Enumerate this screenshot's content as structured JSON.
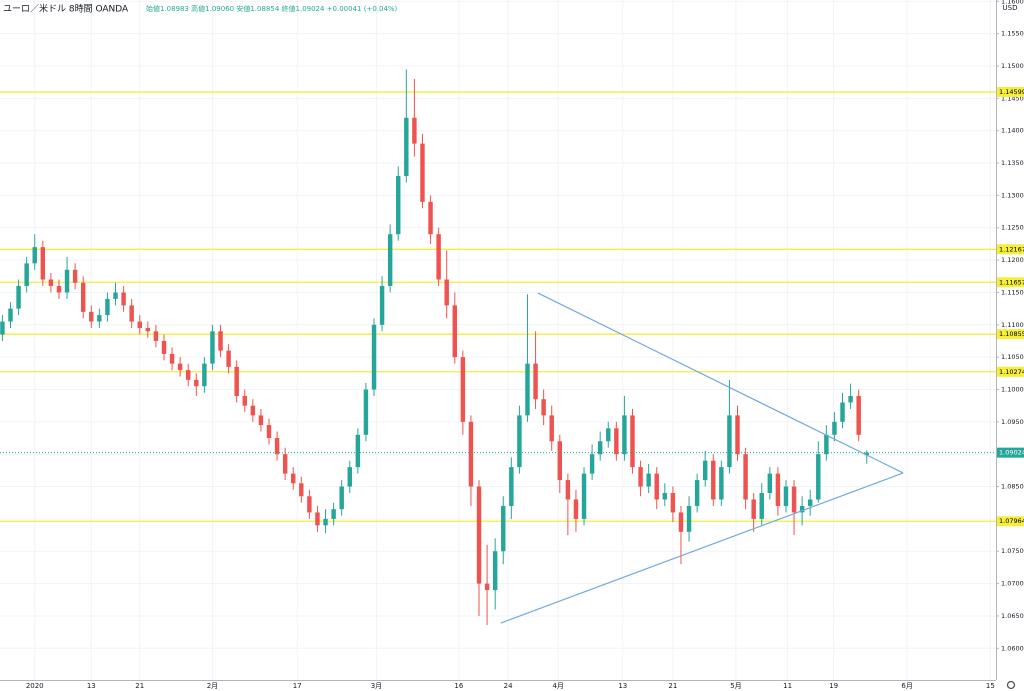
{
  "chart_data": {
    "type": "candlestick",
    "header": {
      "symbol": "ユーロ／米ドル  8時間  OANDA",
      "ohlc_legend": "始値1.08983 高値1.09060 安値1.08854 終値1.09024 +0.00041 (+0.04%)"
    },
    "currency": "USD",
    "up_color": "#26a69a",
    "down_color": "#ef5350",
    "grid": true,
    "xlim": [
      -4.3,
      119
    ],
    "ylim": [
      1.0551,
      1.1602
    ],
    "xticks": [
      {
        "value": 0,
        "label": "2020"
      },
      {
        "value": 7,
        "label": "13"
      },
      {
        "value": 13,
        "label": "21"
      },
      {
        "value": 22,
        "label": "2月"
      },
      {
        "value": 32.5,
        "label": "17"
      },
      {
        "value": 42.3,
        "label": "3月"
      },
      {
        "value": 52.5,
        "label": "16"
      },
      {
        "value": 58.6,
        "label": "24"
      },
      {
        "value": 64.8,
        "label": "4月"
      },
      {
        "value": 72.8,
        "label": "13"
      },
      {
        "value": 79,
        "label": "21"
      },
      {
        "value": 86.8,
        "label": "5月"
      },
      {
        "value": 93.2,
        "label": "11"
      },
      {
        "value": 98.9,
        "label": "19"
      },
      {
        "value": 108,
        "label": "6月"
      },
      {
        "value": 118.3,
        "label": "15"
      }
    ],
    "yticks": [
      {
        "value": 1.06,
        "label": "1.06000"
      },
      {
        "value": 1.065,
        "label": "1.06500"
      },
      {
        "value": 1.07,
        "label": "1.07000"
      },
      {
        "value": 1.075,
        "label": "1.07500"
      },
      {
        "value": 1.08,
        "label": "1.08000"
      },
      {
        "value": 1.085,
        "label": "1.08500"
      },
      {
        "value": 1.09,
        "label": "1.09000"
      },
      {
        "value": 1.095,
        "label": "1.09500"
      },
      {
        "value": 1.1,
        "label": "1.10000"
      },
      {
        "value": 1.105,
        "label": "1.10500"
      },
      {
        "value": 1.11,
        "label": "1.11000"
      },
      {
        "value": 1.115,
        "label": "1.11500"
      },
      {
        "value": 1.12,
        "label": "1.12000"
      },
      {
        "value": 1.125,
        "label": "1.12500"
      },
      {
        "value": 1.13,
        "label": "1.13000"
      },
      {
        "value": 1.135,
        "label": "1.13500"
      },
      {
        "value": 1.14,
        "label": "1.14000"
      },
      {
        "value": 1.145,
        "label": "1.14500"
      },
      {
        "value": 1.15,
        "label": "1.15000"
      },
      {
        "value": 1.155,
        "label": "1.15500"
      },
      {
        "value": 1.16,
        "label": "1.16000"
      }
    ],
    "levels": [
      1.14599,
      1.12167,
      1.11657,
      1.10855,
      1.10274,
      1.07964
    ],
    "level_color": "#f5ee3b",
    "trendline_color": "#6fa8dc",
    "trendlines": [
      {
        "x": [
          62.3,
          107.5
        ],
        "y": [
          1.1149,
          1.0871
        ]
      },
      {
        "x": [
          57.7,
          107.5
        ],
        "y": [
          1.0639,
          1.0871
        ]
      }
    ],
    "x": [
      -4,
      -3,
      -2,
      -1,
      0,
      1,
      2,
      3,
      4,
      5,
      6,
      7,
      8,
      9,
      10,
      11,
      12,
      13,
      14,
      15,
      16,
      17,
      18,
      19,
      20,
      21,
      22,
      23,
      24,
      25,
      26,
      27,
      28,
      29,
      30,
      31,
      32,
      33,
      34,
      35,
      36,
      37,
      38,
      39,
      40,
      41,
      42,
      43,
      44,
      45,
      46,
      47,
      48,
      49,
      50,
      51,
      52,
      53,
      54,
      55,
      56,
      57,
      58,
      59,
      60,
      61,
      62,
      63,
      64,
      65,
      66,
      67,
      68,
      69,
      70,
      71,
      72,
      73,
      74,
      75,
      76,
      77,
      78,
      79,
      80,
      81,
      82,
      83,
      84,
      85,
      86,
      87,
      88,
      89,
      90,
      91,
      92,
      93,
      94,
      95,
      96,
      97,
      98,
      99,
      100,
      101,
      102,
      103
    ],
    "open": [
      1.1085,
      1.1105,
      1.1125,
      1.116,
      1.1195,
      1.122,
      1.117,
      1.116,
      1.115,
      1.1185,
      1.1165,
      1.112,
      1.1105,
      1.1115,
      1.114,
      1.115,
      1.113,
      1.1105,
      1.1095,
      1.109,
      1.1075,
      1.1055,
      1.104,
      1.103,
      1.1015,
      1.1005,
      1.104,
      1.109,
      1.106,
      1.1035,
      1.099,
      1.0975,
      1.096,
      1.0945,
      1.0925,
      1.09,
      1.087,
      1.0855,
      1.0835,
      1.081,
      1.079,
      1.08,
      1.0815,
      1.085,
      1.088,
      1.093,
      1.1,
      1.11,
      1.116,
      1.124,
      1.133,
      1.142,
      1.138,
      1.129,
      1.124,
      1.117,
      1.113,
      1.105,
      1.095,
      1.085,
      1.07,
      1.069,
      1.075,
      1.082,
      1.088,
      1.096,
      1.104,
      1.0985,
      1.096,
      1.092,
      1.086,
      1.083,
      1.08,
      1.087,
      1.09,
      1.092,
      1.094,
      1.09,
      1.096,
      1.088,
      1.085,
      1.087,
      1.083,
      1.084,
      1.081,
      1.078,
      1.082,
      1.086,
      1.089,
      1.083,
      1.088,
      1.096,
      1.09,
      1.083,
      1.08,
      1.084,
      1.087,
      1.082,
      1.085,
      1.081,
      1.082,
      1.083,
      1.09,
      1.093,
      1.095,
      1.098,
      1.099,
      1.08983
    ],
    "high": [
      1.1115,
      1.1135,
      1.117,
      1.1205,
      1.124,
      1.123,
      1.118,
      1.117,
      1.1205,
      1.1195,
      1.1175,
      1.113,
      1.1125,
      1.115,
      1.1165,
      1.116,
      1.114,
      1.1115,
      1.1105,
      1.11,
      1.1085,
      1.1065,
      1.105,
      1.104,
      1.1025,
      1.105,
      1.11,
      1.11,
      1.107,
      1.1045,
      1.1,
      1.0985,
      1.097,
      1.0955,
      1.0935,
      1.091,
      1.088,
      1.0865,
      1.0845,
      1.082,
      1.0815,
      1.0825,
      1.086,
      1.089,
      1.094,
      1.101,
      1.111,
      1.1175,
      1.1255,
      1.1345,
      1.1495,
      1.148,
      1.1395,
      1.13,
      1.125,
      1.1215,
      1.115,
      1.106,
      1.096,
      1.086,
      1.076,
      1.077,
      1.0835,
      1.0895,
      1.0975,
      1.1147,
      1.109,
      1.1,
      1.0975,
      1.093,
      1.087,
      1.0845,
      1.088,
      1.0915,
      1.0935,
      1.095,
      1.095,
      1.099,
      1.097,
      1.089,
      1.0885,
      1.088,
      1.0855,
      1.085,
      1.082,
      1.0835,
      1.087,
      1.0905,
      1.09,
      1.089,
      1.1015,
      1.0975,
      1.091,
      1.084,
      1.0855,
      1.088,
      1.088,
      1.086,
      1.086,
      1.0835,
      1.0845,
      1.092,
      1.0945,
      1.0965,
      1.0995,
      1.1009,
      1.1,
      1.0906
    ],
    "low": [
      1.1075,
      1.1095,
      1.1115,
      1.115,
      1.1185,
      1.116,
      1.115,
      1.114,
      1.114,
      1.1155,
      1.111,
      1.1095,
      1.1095,
      1.1105,
      1.113,
      1.112,
      1.1095,
      1.1085,
      1.108,
      1.1065,
      1.1045,
      1.103,
      1.102,
      1.1005,
      1.099,
      1.0995,
      1.103,
      1.105,
      1.1025,
      1.098,
      1.0965,
      1.095,
      1.0935,
      1.0915,
      1.089,
      1.086,
      1.0845,
      1.0825,
      1.08,
      1.078,
      1.0778,
      1.079,
      1.0805,
      1.084,
      1.087,
      1.092,
      1.099,
      1.109,
      1.115,
      1.123,
      1.132,
      1.136,
      1.128,
      1.1225,
      1.116,
      1.111,
      1.104,
      1.093,
      1.082,
      1.065,
      1.0636,
      1.066,
      1.073,
      1.08,
      1.087,
      1.095,
      1.097,
      1.0945,
      1.0905,
      1.084,
      1.0775,
      1.078,
      1.079,
      1.086,
      1.089,
      1.091,
      1.089,
      1.089,
      1.087,
      1.0835,
      1.084,
      1.0815,
      1.082,
      1.0795,
      1.073,
      1.0765,
      1.081,
      1.085,
      1.082,
      1.082,
      1.087,
      1.089,
      1.0815,
      1.078,
      1.079,
      1.083,
      1.0805,
      1.081,
      1.0775,
      1.079,
      1.0805,
      1.0825,
      1.089,
      1.092,
      1.094,
      1.097,
      1.092,
      1.08854
    ],
    "close": [
      1.1105,
      1.1125,
      1.116,
      1.1195,
      1.122,
      1.117,
      1.116,
      1.115,
      1.1185,
      1.1165,
      1.112,
      1.1105,
      1.1115,
      1.114,
      1.115,
      1.113,
      1.1105,
      1.1095,
      1.109,
      1.1075,
      1.1055,
      1.104,
      1.103,
      1.1015,
      1.1005,
      1.104,
      1.109,
      1.106,
      1.1035,
      1.099,
      1.0975,
      1.096,
      1.0945,
      1.0925,
      1.09,
      1.087,
      1.0855,
      1.0835,
      1.081,
      1.079,
      1.08,
      1.0815,
      1.085,
      1.088,
      1.093,
      1.1,
      1.11,
      1.116,
      1.124,
      1.133,
      1.142,
      1.138,
      1.129,
      1.124,
      1.117,
      1.113,
      1.105,
      1.095,
      1.085,
      1.07,
      1.069,
      1.075,
      1.082,
      1.088,
      1.096,
      1.104,
      1.0985,
      1.096,
      1.092,
      1.086,
      1.083,
      1.08,
      1.087,
      1.09,
      1.092,
      1.094,
      1.09,
      1.096,
      1.088,
      1.085,
      1.087,
      1.083,
      1.084,
      1.081,
      1.078,
      1.082,
      1.086,
      1.089,
      1.083,
      1.088,
      1.096,
      1.09,
      1.083,
      1.08,
      1.084,
      1.087,
      1.082,
      1.085,
      1.081,
      1.082,
      1.083,
      1.09,
      1.093,
      1.095,
      1.098,
      1.099,
      1.093,
      1.09024
    ]
  }
}
